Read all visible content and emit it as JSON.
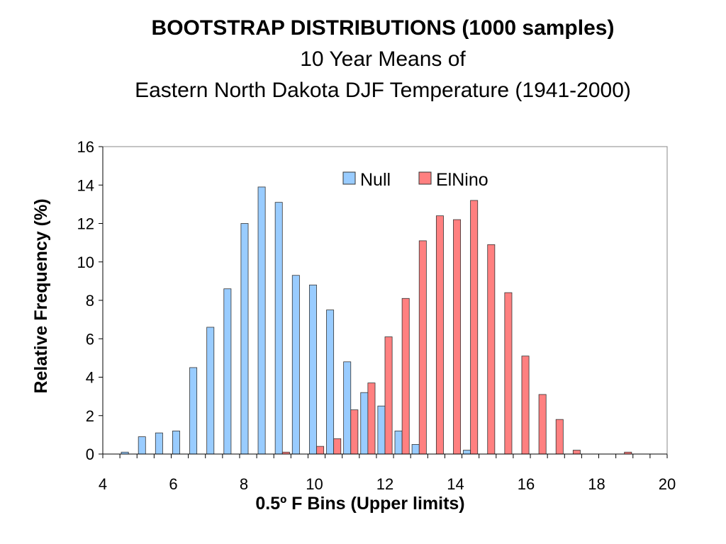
{
  "chart_data": {
    "type": "bar",
    "title": "BOOTSTRAP DISTRIBUTIONS (1000 samples)",
    "subtitle_lines": [
      "10 Year Means of",
      "Eastern North Dakota DJF Temperature (1941-2000)"
    ],
    "xlabel": "0.5º F Bins (Upper limits)",
    "ylabel": "Relative Frequency (%)",
    "xlim": [
      4,
      20
    ],
    "ylim": [
      0,
      16
    ],
    "x_ticks": [
      4,
      6,
      8,
      10,
      12,
      14,
      16,
      18,
      20
    ],
    "y_ticks": [
      0,
      2,
      4,
      6,
      8,
      10,
      12,
      14,
      16
    ],
    "grid": false,
    "legend_position": "top-center",
    "bins": [
      4.5,
      5,
      5.5,
      6,
      6.5,
      7,
      7.5,
      8,
      8.5,
      9,
      9.5,
      10,
      10.5,
      11,
      11.5,
      12,
      12.5,
      13,
      13.5,
      14,
      14.5,
      15,
      15.5,
      16,
      16.5,
      17,
      17.5,
      18,
      18.5,
      19,
      19.5,
      20
    ],
    "series": [
      {
        "name": "Null",
        "color": "#99ccff",
        "values": [
          0,
          0.1,
          0.9,
          1.1,
          1.2,
          4.5,
          6.6,
          8.6,
          12.0,
          13.9,
          13.1,
          9.3,
          8.8,
          7.5,
          4.8,
          3.2,
          2.5,
          1.2,
          0.5,
          0,
          0,
          0.2,
          0,
          0,
          0,
          0,
          0,
          0,
          0,
          0,
          0,
          0
        ]
      },
      {
        "name": "ElNino",
        "color": "#ff8080",
        "values": [
          0,
          0,
          0,
          0,
          0,
          0,
          0,
          0,
          0,
          0,
          0.1,
          0,
          0.4,
          0.8,
          2.3,
          3.7,
          6.1,
          8.1,
          11.1,
          12.4,
          12.2,
          13.2,
          10.9,
          8.4,
          5.1,
          3.1,
          1.8,
          0.2,
          0,
          0,
          0.1,
          0
        ]
      }
    ]
  }
}
